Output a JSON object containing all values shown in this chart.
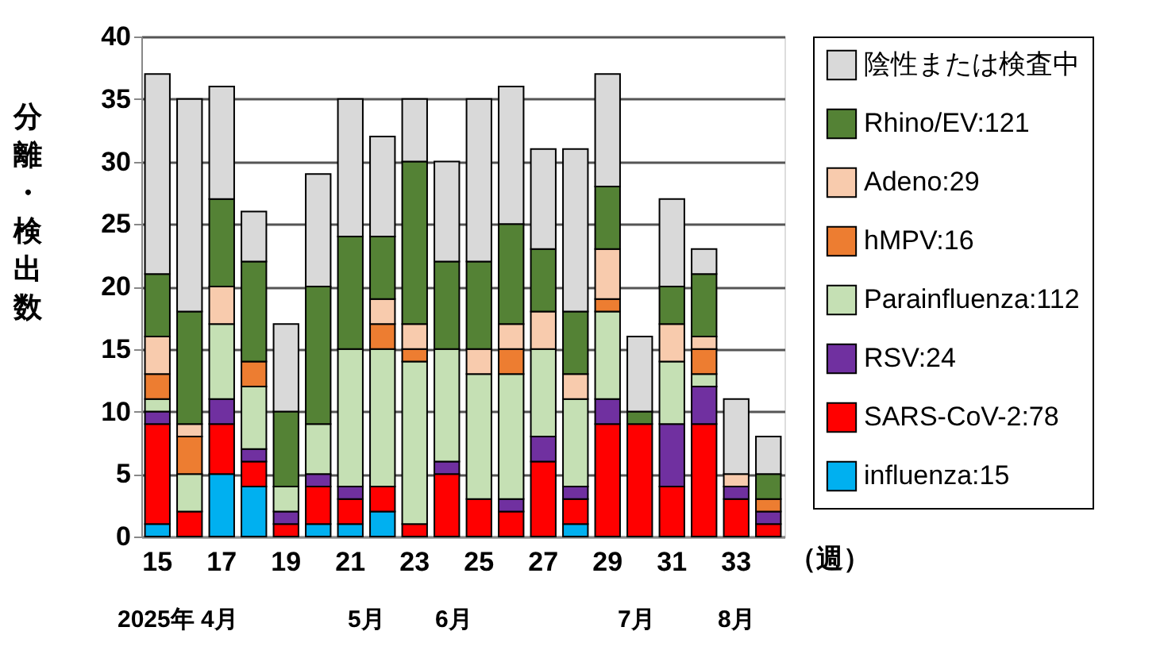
{
  "chart_data": {
    "type": "bar",
    "stacked": true,
    "ylabel": "分離・検出数",
    "xlabel": "（週）",
    "categories": [
      "15",
      null,
      "17",
      null,
      "19",
      null,
      "21",
      null,
      "23",
      null,
      "25",
      null,
      "27",
      null,
      "29",
      null,
      "31",
      null,
      "33",
      null
    ],
    "series": [
      {
        "name": "influenza:15",
        "color": "#00b0f0",
        "values": [
          1,
          0,
          5,
          4,
          0,
          1,
          1,
          2,
          0,
          0,
          0,
          0,
          0,
          1,
          0,
          0,
          0,
          0,
          0,
          0
        ]
      },
      {
        "name": "SARS-CoV-2:78",
        "color": "#ff0000",
        "values": [
          8,
          2,
          4,
          2,
          1,
          3,
          2,
          2,
          1,
          5,
          3,
          2,
          6,
          2,
          9,
          9,
          4,
          9,
          3,
          1
        ]
      },
      {
        "name": "RSV:24",
        "color": "#7030a0",
        "values": [
          1,
          0,
          2,
          1,
          1,
          1,
          1,
          0,
          0,
          1,
          0,
          1,
          2,
          1,
          2,
          0,
          5,
          3,
          1,
          1
        ]
      },
      {
        "name": "Parainfluenza:112",
        "color": "#c5e0b4",
        "values": [
          1,
          3,
          6,
          5,
          2,
          4,
          11,
          11,
          13,
          9,
          10,
          10,
          7,
          7,
          7,
          0,
          5,
          1,
          0,
          0
        ]
      },
      {
        "name": "hMPV:16",
        "color": "#ed7d31",
        "values": [
          2,
          3,
          0,
          2,
          0,
          0,
          0,
          2,
          1,
          0,
          0,
          2,
          0,
          0,
          1,
          0,
          0,
          2,
          0,
          1
        ]
      },
      {
        "name": "Adeno:29",
        "color": "#f8cbad",
        "values": [
          3,
          1,
          3,
          0,
          0,
          0,
          0,
          2,
          2,
          0,
          2,
          2,
          3,
          2,
          4,
          0,
          3,
          1,
          1,
          0
        ]
      },
      {
        "name": "Rhino/EV:121",
        "color": "#548235",
        "values": [
          5,
          9,
          7,
          8,
          6,
          11,
          9,
          5,
          13,
          7,
          7,
          8,
          5,
          5,
          5,
          1,
          3,
          5,
          0,
          2
        ]
      },
      {
        "name": "陰性または検査中",
        "color": "#d9d9d9",
        "values": [
          16,
          17,
          9,
          4,
          7,
          9,
          11,
          8,
          5,
          8,
          13,
          11,
          8,
          13,
          9,
          6,
          7,
          2,
          6,
          3
        ]
      }
    ],
    "ylim": [
      0,
      40
    ],
    "yticks": [
      0,
      5,
      10,
      15,
      20,
      25,
      30,
      35,
      40
    ],
    "grid": "y",
    "legend": "right",
    "annotations": [
      "2025年 4月",
      "5月",
      "6月",
      "7月",
      "8月"
    ]
  }
}
